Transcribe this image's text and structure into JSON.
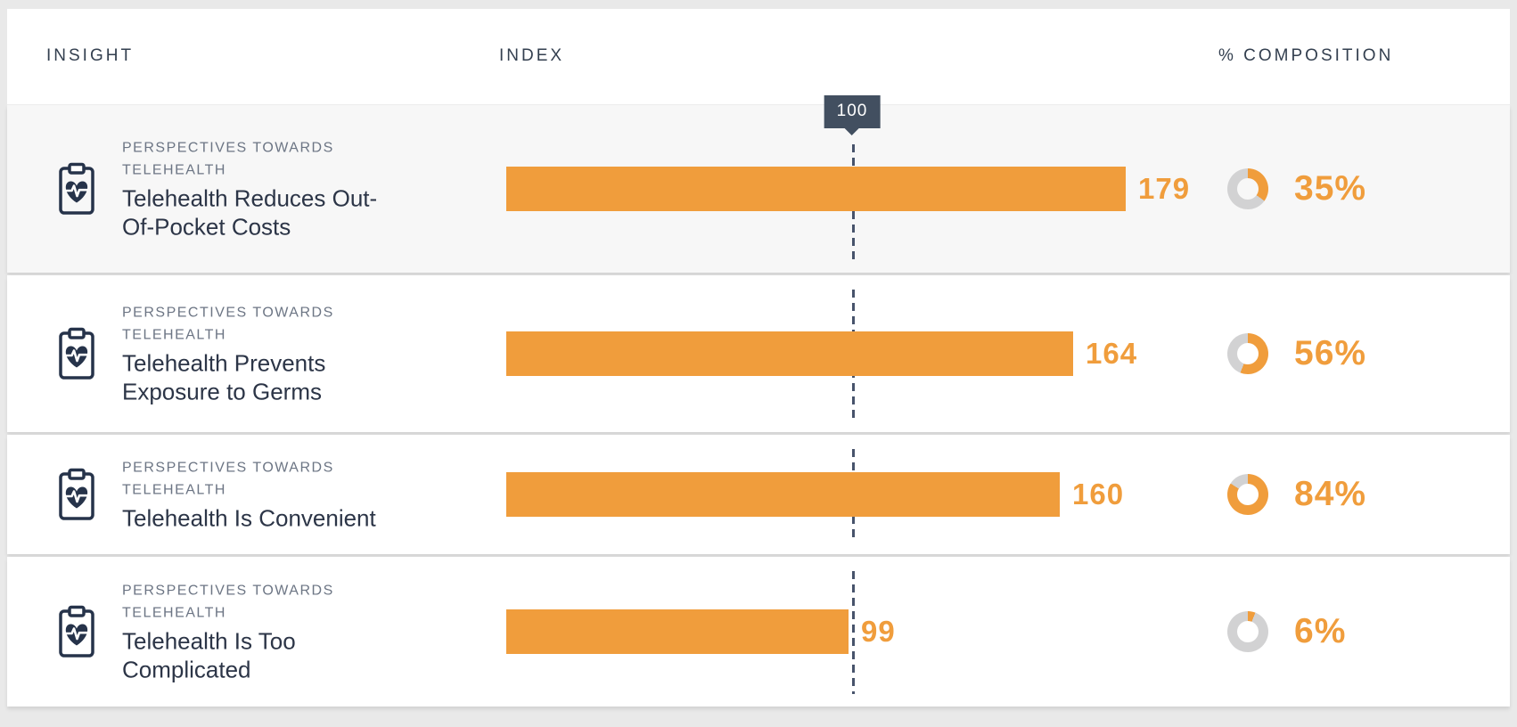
{
  "colors": {
    "accent_orange": "#f09d3c",
    "donut_track_gray": "#d2d2d3",
    "badge_slate": "#424f60",
    "title_navy": "#2c3547",
    "page_gray": "#e9e9e9"
  },
  "header": {
    "col_insight": "INSIGHT",
    "col_index": "INDEX",
    "col_composition": "% COMPOSITION"
  },
  "index_marker": {
    "label": "100",
    "value": 100
  },
  "rows": [
    {
      "icon": "clipboard-heart-pulse-icon",
      "eyebrow": "PERSPECTIVES TOWARDS TELEHEALTH",
      "title": "Telehealth Reduces Out-Of-Pocket Costs",
      "index": 179,
      "index_label": "179",
      "composition_pct": 35,
      "composition_label": "35%",
      "shaded": true
    },
    {
      "icon": "clipboard-heart-pulse-icon",
      "eyebrow": "PERSPECTIVES TOWARDS TELEHEALTH",
      "title": "Telehealth Prevents Exposure to Germs",
      "index": 164,
      "index_label": "164",
      "composition_pct": 56,
      "composition_label": "56%",
      "shaded": false
    },
    {
      "icon": "clipboard-heart-pulse-icon",
      "eyebrow": "PERSPECTIVES TOWARDS TELEHEALTH",
      "title": "Telehealth Is Convenient",
      "index": 160,
      "index_label": "160",
      "composition_pct": 84,
      "composition_label": "84%",
      "shaded": false
    },
    {
      "icon": "clipboard-heart-pulse-icon",
      "eyebrow": "PERSPECTIVES TOWARDS TELEHEALTH",
      "title": "Telehealth Is Too Complicated",
      "index": 99,
      "index_label": "99",
      "composition_pct": 6,
      "composition_label": "6%",
      "shaded": false
    }
  ],
  "chart_data": {
    "type": "bar",
    "title": "Perspectives Towards Telehealth — Insight Index and % Composition",
    "categories": [
      "Telehealth Reduces Out-Of-Pocket Costs",
      "Telehealth Prevents Exposure to Germs",
      "Telehealth Is Convenient",
      "Telehealth Is Too Complicated"
    ],
    "series": [
      {
        "name": "Index",
        "values": [
          179,
          164,
          160,
          99
        ]
      },
      {
        "name": "% Composition",
        "values": [
          35,
          56,
          84,
          6
        ]
      }
    ],
    "orientation": "horizontal",
    "baseline_marker": {
      "label": "100",
      "value": 100
    },
    "xlabel": "INDEX",
    "ylabel": "INSIGHT",
    "xlim": [
      0,
      250
    ],
    "grid": false,
    "legend": "none"
  }
}
